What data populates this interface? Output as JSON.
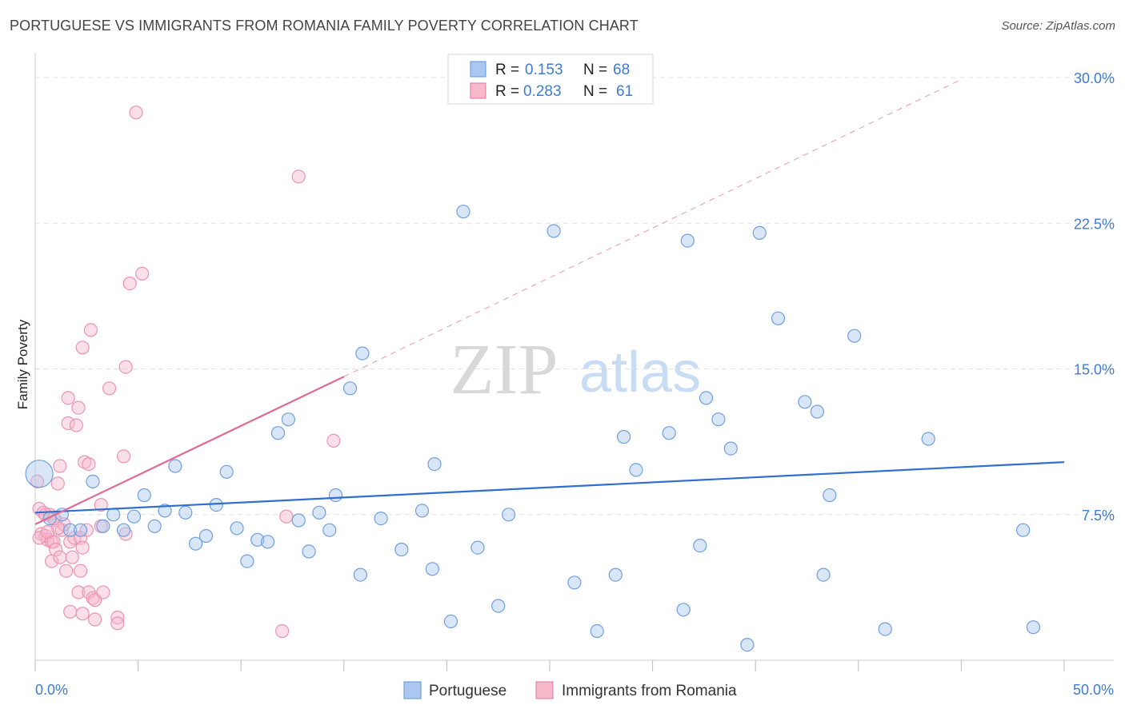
{
  "title": "PORTUGUESE VS IMMIGRANTS FROM ROMANIA FAMILY POVERTY CORRELATION CHART",
  "source": "Source: ZipAtlas.com",
  "watermark": {
    "zip": "ZIP",
    "atlas": "atlas"
  },
  "colors": {
    "blue": "#3d7bd4",
    "blue_fill": "#aac8ef",
    "blue_line": "#2f6fcf",
    "pink": "#e8729a",
    "pink_fill": "#f6b9cc",
    "pink_line": "#e06a93",
    "grid": "#e2e2e2",
    "axis": "#cccccc"
  },
  "legend": {
    "rows": [
      {
        "series": "Portuguese",
        "r_label": "R =",
        "r_value": "0.153",
        "n_label": "N =",
        "n_value": "68"
      },
      {
        "series": "Immigrants from Romania",
        "r_label": "R =",
        "r_value": "0.283",
        "n_label": "N =",
        "n_value": "61"
      }
    ]
  },
  "bottom_legend": [
    "Portuguese",
    "Immigrants from Romania"
  ],
  "chart_data": {
    "type": "scatter",
    "title": "PORTUGUESE VS IMMIGRANTS FROM ROMANIA FAMILY POVERTY CORRELATION CHART",
    "xlabel": "",
    "ylabel": "Family Poverty",
    "xlim": [
      0,
      50
    ],
    "ylim": [
      0,
      30
    ],
    "x_tick_labels": [
      "0.0%",
      "50.0%"
    ],
    "y_ticks": [
      7.5,
      15.0,
      22.5,
      30.0
    ],
    "y_tick_labels": [
      "7.5%",
      "15.0%",
      "22.5%",
      "30.0%"
    ],
    "grid": true,
    "legend_position": "top-center",
    "series": [
      {
        "name": "Portuguese",
        "r": 0.153,
        "n": 68,
        "trend": {
          "x": [
            0,
            50
          ],
          "y": [
            7.6,
            10.2
          ]
        },
        "points": [
          [
            0.2,
            9.6
          ],
          [
            0.7,
            7.3
          ],
          [
            1.3,
            7.5
          ],
          [
            1.7,
            6.7
          ],
          [
            2.2,
            6.7
          ],
          [
            2.8,
            9.2
          ],
          [
            3.3,
            6.9
          ],
          [
            3.8,
            7.5
          ],
          [
            4.3,
            6.7
          ],
          [
            4.8,
            7.4
          ],
          [
            5.3,
            8.5
          ],
          [
            5.8,
            6.9
          ],
          [
            6.3,
            7.7
          ],
          [
            6.8,
            10.0
          ],
          [
            7.3,
            7.6
          ],
          [
            7.8,
            6.0
          ],
          [
            8.3,
            6.4
          ],
          [
            8.8,
            8.0
          ],
          [
            9.3,
            9.7
          ],
          [
            9.8,
            6.8
          ],
          [
            10.3,
            5.1
          ],
          [
            10.8,
            6.2
          ],
          [
            11.3,
            6.1
          ],
          [
            11.8,
            11.7
          ],
          [
            12.3,
            12.4
          ],
          [
            12.8,
            7.2
          ],
          [
            13.3,
            5.6
          ],
          [
            13.8,
            7.6
          ],
          [
            14.3,
            6.7
          ],
          [
            14.6,
            8.5
          ],
          [
            15.3,
            14.0
          ],
          [
            15.8,
            4.4
          ],
          [
            15.9,
            15.8
          ],
          [
            16.8,
            7.3
          ],
          [
            17.8,
            5.7
          ],
          [
            18.8,
            7.7
          ],
          [
            19.3,
            4.7
          ],
          [
            19.4,
            10.1
          ],
          [
            20.2,
            2.0
          ],
          [
            20.8,
            23.1
          ],
          [
            21.5,
            5.8
          ],
          [
            22.5,
            2.8
          ],
          [
            23.0,
            7.5
          ],
          [
            25.2,
            22.1
          ],
          [
            26.2,
            4.0
          ],
          [
            27.3,
            1.5
          ],
          [
            28.2,
            4.4
          ],
          [
            28.6,
            11.5
          ],
          [
            29.2,
            9.8
          ],
          [
            30.8,
            11.7
          ],
          [
            31.5,
            2.6
          ],
          [
            31.7,
            21.6
          ],
          [
            32.3,
            5.9
          ],
          [
            32.6,
            13.5
          ],
          [
            33.2,
            12.4
          ],
          [
            33.8,
            10.9
          ],
          [
            34.6,
            0.8
          ],
          [
            35.2,
            22.0
          ],
          [
            36.1,
            17.6
          ],
          [
            37.4,
            13.3
          ],
          [
            38.0,
            12.8
          ],
          [
            38.3,
            4.4
          ],
          [
            38.6,
            8.5
          ],
          [
            39.8,
            16.7
          ],
          [
            41.3,
            1.6
          ],
          [
            43.4,
            11.4
          ],
          [
            48.0,
            6.7
          ],
          [
            48.5,
            1.7
          ]
        ]
      },
      {
        "name": "Immigrants from Romania",
        "r": 0.283,
        "n": 61,
        "trend": {
          "x": [
            0,
            15
          ],
          "y": [
            7.0,
            14.6
          ]
        },
        "trend_extension": {
          "x": [
            15,
            45
          ],
          "y": [
            14.6,
            29.9
          ]
        },
        "points": [
          [
            0.1,
            9.2
          ],
          [
            0.2,
            7.8
          ],
          [
            0.3,
            6.5
          ],
          [
            0.4,
            7.6
          ],
          [
            0.5,
            6.4
          ],
          [
            0.6,
            6.2
          ],
          [
            0.7,
            7.5
          ],
          [
            0.8,
            6.1
          ],
          [
            0.8,
            5.1
          ],
          [
            0.9,
            6.1
          ],
          [
            1.0,
            5.7
          ],
          [
            1.0,
            7.2
          ],
          [
            1.1,
            9.1
          ],
          [
            1.2,
            5.3
          ],
          [
            1.2,
            10.0
          ],
          [
            1.3,
            6.7
          ],
          [
            1.4,
            7.0
          ],
          [
            1.5,
            4.6
          ],
          [
            1.6,
            13.5
          ],
          [
            1.6,
            12.2
          ],
          [
            1.7,
            6.1
          ],
          [
            1.7,
            2.5
          ],
          [
            1.8,
            5.3
          ],
          [
            1.9,
            6.3
          ],
          [
            2.0,
            12.1
          ],
          [
            2.1,
            3.5
          ],
          [
            2.1,
            13.0
          ],
          [
            2.2,
            4.6
          ],
          [
            2.2,
            6.3
          ],
          [
            2.3,
            2.4
          ],
          [
            2.3,
            5.8
          ],
          [
            2.3,
            16.1
          ],
          [
            2.4,
            10.2
          ],
          [
            2.5,
            6.7
          ],
          [
            2.6,
            10.1
          ],
          [
            2.6,
            3.5
          ],
          [
            2.7,
            17.0
          ],
          [
            2.8,
            3.2
          ],
          [
            2.9,
            3.1
          ],
          [
            2.9,
            2.1
          ],
          [
            3.2,
            6.9
          ],
          [
            3.2,
            8.0
          ],
          [
            3.3,
            3.5
          ],
          [
            3.6,
            14.0
          ],
          [
            4.0,
            2.2
          ],
          [
            4.0,
            1.9
          ],
          [
            4.3,
            10.5
          ],
          [
            4.4,
            15.1
          ],
          [
            4.4,
            6.5
          ],
          [
            4.6,
            19.4
          ],
          [
            4.9,
            28.2
          ],
          [
            5.2,
            19.9
          ],
          [
            12.0,
            1.5
          ],
          [
            12.2,
            7.4
          ],
          [
            12.8,
            24.9
          ],
          [
            14.5,
            11.3
          ],
          [
            0.5,
            7.5
          ],
          [
            1.1,
            6.8
          ],
          [
            0.2,
            6.3
          ],
          [
            0.6,
            6.6
          ],
          [
            0.9,
            7.3
          ]
        ]
      }
    ]
  }
}
